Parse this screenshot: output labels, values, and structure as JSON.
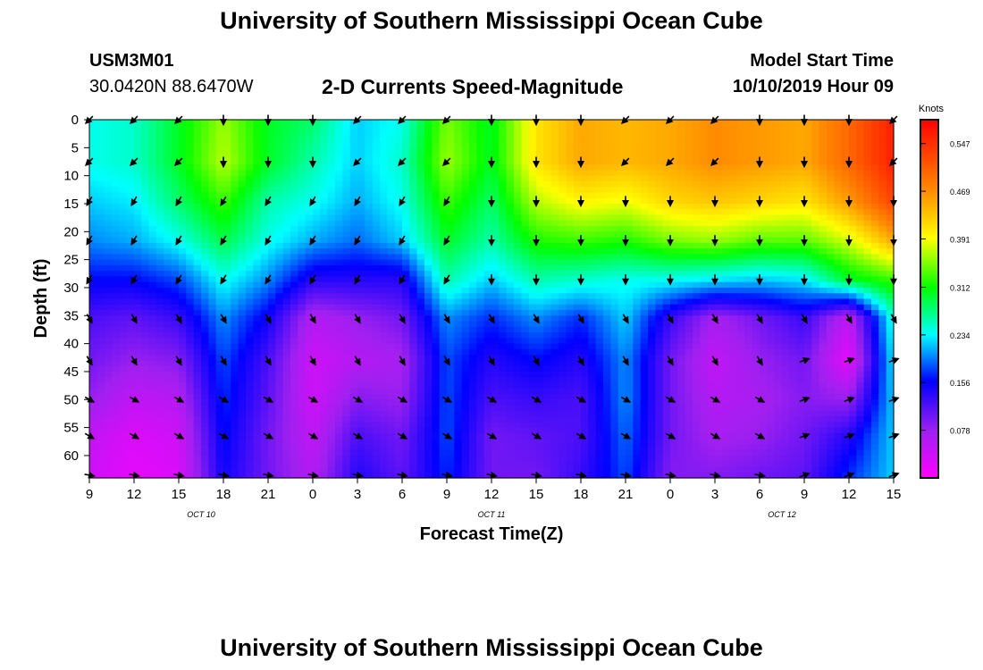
{
  "header": {
    "title": "University of Southern Mississippi Ocean Cube",
    "station_id": "USM3M01",
    "station_coords": "30.0420N 88.6470W",
    "chart_subtitle": "2-D Currents Speed-Magnitude",
    "model_start_label": "Model Start Time",
    "model_start_value": "10/10/2019 Hour 09"
  },
  "footer": {
    "title": "University of Southern Mississippi Ocean Cube"
  },
  "chart_data": {
    "type": "heatmap",
    "xlabel": "Forecast Time(Z)",
    "ylabel": "Depth (ft)",
    "x_ticks": [
      "9",
      "12",
      "15",
      "18",
      "21",
      "0",
      "3",
      "6",
      "9",
      "12",
      "15",
      "18",
      "21",
      "0",
      "3",
      "6",
      "9",
      "12",
      "15"
    ],
    "x_range_hours": [
      0,
      54
    ],
    "date_labels": [
      {
        "text": "OCT 10",
        "hour": 7.5
      },
      {
        "text": "OCT 11",
        "hour": 27
      },
      {
        "text": "OCT 12",
        "hour": 46.5
      }
    ],
    "y_ticks": [
      0,
      5,
      10,
      15,
      20,
      25,
      30,
      35,
      40,
      45,
      50,
      55,
      60
    ],
    "y_range": [
      0,
      64
    ],
    "colorbar": {
      "label": "Knots",
      "ticks": [
        0.547,
        0.469,
        0.391,
        0.312,
        0.234,
        0.156,
        0.078
      ],
      "range": [
        0,
        0.586
      ]
    },
    "vector_depths": [
      0,
      7.5,
      14.5,
      21.5,
      28.5,
      35.5,
      43,
      50,
      56.5,
      63.5
    ],
    "vector_times": [
      0,
      3,
      6,
      9,
      12,
      15,
      18,
      21,
      24,
      27,
      30,
      33,
      36,
      39,
      42,
      45,
      48,
      51,
      54
    ],
    "speed_profiles": [
      {
        "hour": 0,
        "speed": [
          0.24,
          0.24,
          0.22,
          0.2,
          0.16,
          0.12,
          0.1,
          0.08,
          0.05,
          0.04
        ]
      },
      {
        "hour": 3,
        "speed": [
          0.25,
          0.25,
          0.23,
          0.21,
          0.16,
          0.11,
          0.08,
          0.05,
          0.03,
          0.02
        ]
      },
      {
        "hour": 6,
        "speed": [
          0.3,
          0.3,
          0.28,
          0.24,
          0.18,
          0.13,
          0.09,
          0.06,
          0.04,
          0.03
        ]
      },
      {
        "hour": 9,
        "speed": [
          0.36,
          0.37,
          0.33,
          0.29,
          0.24,
          0.2,
          0.18,
          0.17,
          0.16,
          0.15
        ]
      },
      {
        "hour": 12,
        "speed": [
          0.3,
          0.3,
          0.26,
          0.24,
          0.2,
          0.15,
          0.12,
          0.11,
          0.1,
          0.1
        ]
      },
      {
        "hour": 15,
        "speed": [
          0.28,
          0.26,
          0.24,
          0.21,
          0.14,
          0.06,
          0.04,
          0.04,
          0.05,
          0.06
        ]
      },
      {
        "hour": 18,
        "speed": [
          0.22,
          0.22,
          0.21,
          0.19,
          0.14,
          0.08,
          0.06,
          0.09,
          0.12,
          0.14
        ]
      },
      {
        "hour": 21,
        "speed": [
          0.24,
          0.25,
          0.24,
          0.22,
          0.14,
          0.1,
          0.07,
          0.08,
          0.1,
          0.11
        ]
      },
      {
        "hour": 24,
        "speed": [
          0.35,
          0.36,
          0.33,
          0.3,
          0.26,
          0.2,
          0.18,
          0.18,
          0.18,
          0.17
        ]
      },
      {
        "hour": 27,
        "speed": [
          0.3,
          0.3,
          0.28,
          0.26,
          0.22,
          0.17,
          0.14,
          0.12,
          0.1,
          0.1
        ]
      },
      {
        "hour": 30,
        "speed": [
          0.41,
          0.41,
          0.37,
          0.32,
          0.26,
          0.2,
          0.16,
          0.13,
          0.11,
          0.1
        ]
      },
      {
        "hour": 33,
        "speed": [
          0.45,
          0.45,
          0.4,
          0.33,
          0.25,
          0.17,
          0.14,
          0.12,
          0.12,
          0.13
        ]
      },
      {
        "hour": 36,
        "speed": [
          0.44,
          0.44,
          0.39,
          0.32,
          0.24,
          0.22,
          0.2,
          0.2,
          0.19,
          0.18
        ]
      },
      {
        "hour": 39,
        "speed": [
          0.45,
          0.45,
          0.42,
          0.35,
          0.24,
          0.13,
          0.1,
          0.1,
          0.1,
          0.09
        ]
      },
      {
        "hour": 42,
        "speed": [
          0.47,
          0.47,
          0.43,
          0.36,
          0.23,
          0.07,
          0.05,
          0.06,
          0.07,
          0.09
        ]
      },
      {
        "hour": 45,
        "speed": [
          0.46,
          0.46,
          0.42,
          0.34,
          0.22,
          0.1,
          0.08,
          0.07,
          0.08,
          0.1
        ]
      },
      {
        "hour": 48,
        "speed": [
          0.45,
          0.45,
          0.41,
          0.34,
          0.23,
          0.13,
          0.1,
          0.09,
          0.1,
          0.11
        ]
      },
      {
        "hour": 51,
        "speed": [
          0.5,
          0.5,
          0.46,
          0.38,
          0.3,
          0.05,
          0.02,
          0.08,
          0.14,
          0.17
        ]
      },
      {
        "hour": 54,
        "speed": [
          0.56,
          0.56,
          0.53,
          0.45,
          0.33,
          0.25,
          0.23,
          0.22,
          0.22,
          0.22
        ]
      }
    ],
    "vector_direction_note": "arrows mostly point downward (southward) near surface and rightward at depth",
    "grid": false,
    "legend": "right"
  }
}
